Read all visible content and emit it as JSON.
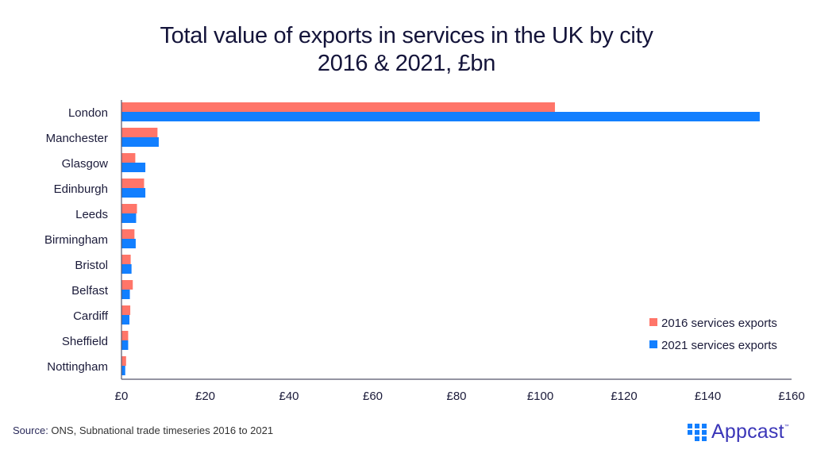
{
  "chart_data": {
    "type": "bar",
    "orientation": "horizontal",
    "title": "Total value of exports in services in the UK by city",
    "subtitle": "2016 & 2021, £bn",
    "categories": [
      "London",
      "Manchester",
      "Glasgow",
      "Edinburgh",
      "Leeds",
      "Birmingham",
      "Bristol",
      "Belfast",
      "Cardiff",
      "Sheffield",
      "Nottingham"
    ],
    "series": [
      {
        "name": "2016 services exports",
        "color": "#ff7569",
        "values": [
          103.5,
          8.6,
          3.3,
          5.4,
          3.7,
          3.1,
          2.2,
          2.7,
          2.1,
          1.6,
          1.1
        ]
      },
      {
        "name": "2021 services exports",
        "color": "#127fff",
        "values": [
          152.4,
          8.9,
          5.7,
          5.7,
          3.5,
          3.4,
          2.4,
          2.0,
          1.9,
          1.6,
          0.9
        ]
      }
    ],
    "xlabel": "",
    "ylabel": "",
    "xlim": [
      0,
      160
    ],
    "xticks": [
      0,
      20,
      40,
      60,
      80,
      100,
      120,
      140,
      160
    ],
    "xtick_labels": [
      "£0",
      "£20",
      "£40",
      "£60",
      "£80",
      "£100",
      "£120",
      "£140",
      "£160"
    ],
    "grid": false,
    "legend": "bottom-right"
  },
  "footer": {
    "source_label": "Source:",
    "source_text": " ONS, Subnational trade timeseries 2016 to 2021",
    "brand": "Appcast",
    "brand_tm": "™",
    "brand_color": "#3b36b8",
    "brand_icon": "appcast-dots-icon"
  }
}
